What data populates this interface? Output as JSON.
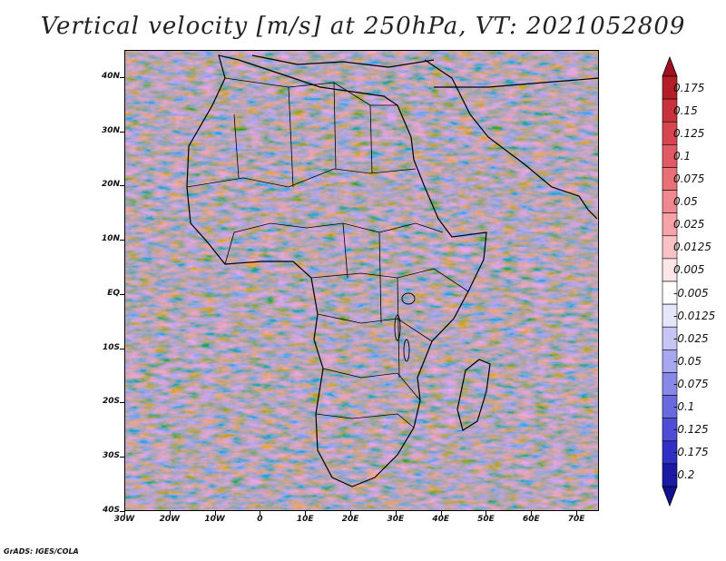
{
  "title": "Vertical velocity [m/s] at 250hPa, VT: 2021052809",
  "credit": "GrADS: IGES/COLA",
  "map": {
    "lat_labels": [
      "40N",
      "30N",
      "20N",
      "10N",
      "EQ",
      "10S",
      "20S",
      "30S",
      "40S"
    ],
    "lat_values": [
      40,
      30,
      20,
      10,
      0,
      -10,
      -20,
      -30,
      -40
    ],
    "lon_labels": [
      "30W",
      "20W",
      "10W",
      "0",
      "10E",
      "20E",
      "30E",
      "40E",
      "50E",
      "60E",
      "70E"
    ],
    "lon_values": [
      -30,
      -20,
      -10,
      0,
      10,
      20,
      30,
      40,
      50,
      60,
      70
    ],
    "lon_range": [
      -30,
      75
    ],
    "lat_range": [
      -40,
      45
    ]
  },
  "colorbar": {
    "labels": [
      "0.175",
      "0.15",
      "0.125",
      "0.1",
      "0.075",
      "0.05",
      "0.025",
      "0.0125",
      "0.005",
      "-0.005",
      "-0.0125",
      "-0.025",
      "-0.05",
      "-0.075",
      "-0.1",
      "-0.125",
      "-0.175",
      "-0.2"
    ],
    "colors": [
      "#b41e28",
      "#c8323c",
      "#d74650",
      "#e25a64",
      "#ea7078",
      "#f08890",
      "#f5a3a8",
      "#f9c3c6",
      "#fde6e7",
      "#ffffff",
      "#e6e6fb",
      "#c6c6f5",
      "#a7a7ef",
      "#8888e8",
      "#6a6ae0",
      "#4d4dd6",
      "#3030c4",
      "#1a1aa6"
    ],
    "top_cap_color": "#a01020",
    "bottom_cap_color": "#101090"
  }
}
